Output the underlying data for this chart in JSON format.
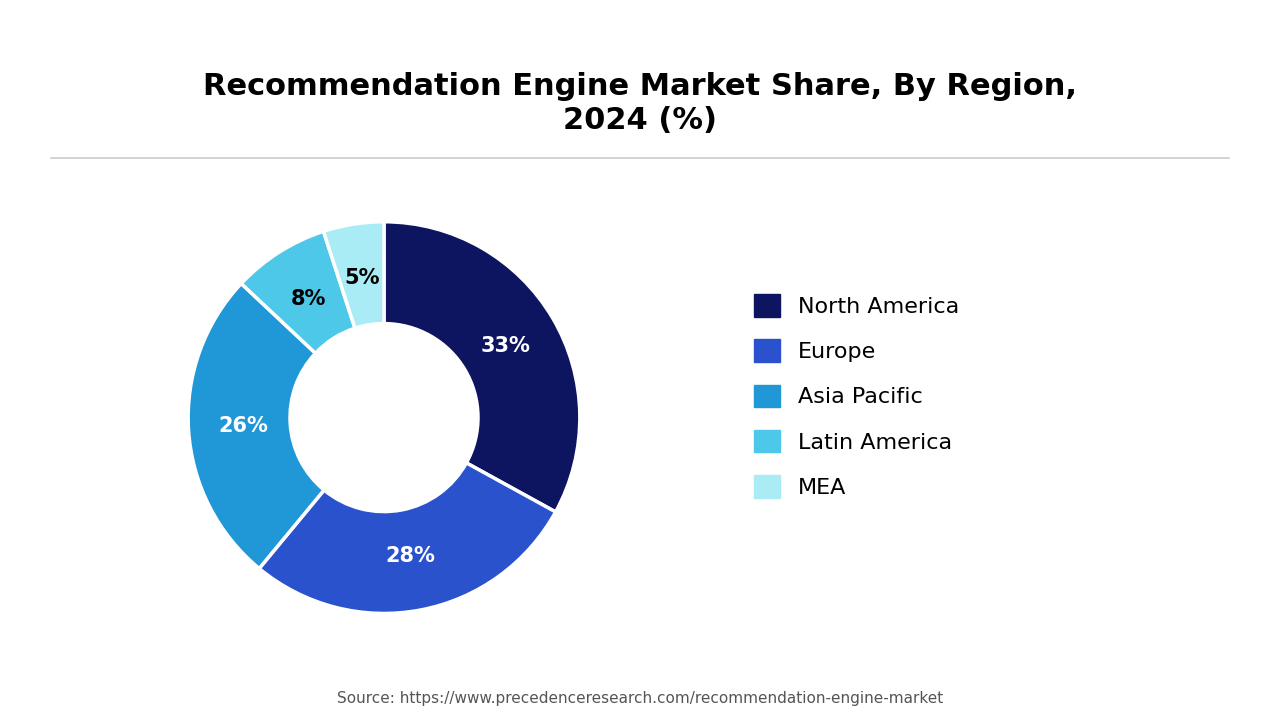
{
  "title": "Recommendation Engine Market Share, By Region,\n2024 (%)",
  "segments": [
    {
      "label": "North America",
      "value": 33,
      "color": "#0d1560"
    },
    {
      "label": "Europe",
      "value": 28,
      "color": "#2a52cc"
    },
    {
      "label": "Asia Pacific",
      "value": 26,
      "color": "#2097d6"
    },
    {
      "label": "Latin America",
      "value": 8,
      "color": "#4ec8e8"
    },
    {
      "label": "MEA",
      "value": 5,
      "color": "#aaecf5"
    }
  ],
  "bg_color": "#ffffff",
  "title_fontsize": 22,
  "label_fontsize": 15,
  "legend_fontsize": 16,
  "source_text": "Source: https://www.precedenceresearch.com/recommendation-engine-market",
  "source_fontsize": 11
}
